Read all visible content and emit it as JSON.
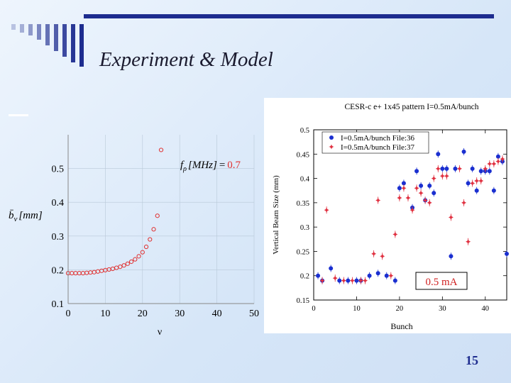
{
  "slide": {
    "title": "Experiment & Model",
    "page_number": "15",
    "accent_color": "#1d2c8f",
    "background_color": "#dbe8f7"
  },
  "chart_data": [
    {
      "type": "scatter",
      "xlabel": "ν",
      "ylabel_base": "b̄",
      "ylabel_sub": "ν",
      "ylabel_unit": "[mm]",
      "xlim": [
        0,
        50
      ],
      "ylim": [
        0.1,
        0.6
      ],
      "x_ticks": [
        "0",
        "10",
        "20",
        "30",
        "40",
        "50"
      ],
      "y_ticks": [
        "0.1",
        "0.2",
        "0.3",
        "0.4",
        "0.5"
      ],
      "annotation": {
        "prefix": "f",
        "sub": "ρ",
        "unit": "[MHz]",
        "equals": "=",
        "value": "0.7"
      },
      "marker_color": "#e03030",
      "x": [
        0,
        1,
        2,
        3,
        4,
        5,
        6,
        7,
        8,
        9,
        10,
        11,
        12,
        13,
        14,
        15,
        16,
        17,
        18,
        19,
        20,
        21,
        22,
        23,
        24,
        25
      ],
      "y": [
        0.19,
        0.19,
        0.19,
        0.19,
        0.19,
        0.191,
        0.192,
        0.193,
        0.195,
        0.197,
        0.199,
        0.201,
        0.203,
        0.206,
        0.209,
        0.213,
        0.218,
        0.224,
        0.231,
        0.24,
        0.252,
        0.268,
        0.29,
        0.32,
        0.36,
        0.555
      ]
    },
    {
      "type": "scatter",
      "title": "CESR-c e+ 1x45 pattern I=0.5mA/bunch",
      "xlabel": "Bunch",
      "ylabel": "Vertical Beam Size (mm)",
      "xlim": [
        0,
        45
      ],
      "ylim": [
        0.15,
        0.5
      ],
      "x_ticks": [
        "0",
        "10",
        "20",
        "30",
        "40"
      ],
      "y_ticks": [
        "0.15",
        "0.2",
        "0.25",
        "0.3",
        "0.35",
        "0.4",
        "0.45",
        "0.5"
      ],
      "annotation_box": "0.5 mA",
      "legend_position": "top-left",
      "series": [
        {
          "name": "I=0.5mA/bunch File:36",
          "color": "#1a2fd0",
          "marker": "circle",
          "x": [
            1,
            2,
            4,
            6,
            8,
            10,
            11,
            13,
            15,
            17,
            19,
            20,
            21,
            23,
            24,
            25,
            26,
            27,
            28,
            29,
            30,
            31,
            32,
            33,
            35,
            36,
            37,
            38,
            39,
            40,
            41,
            42,
            43,
            44,
            45
          ],
          "y": [
            0.2,
            0.19,
            0.215,
            0.19,
            0.19,
            0.19,
            0.19,
            0.2,
            0.205,
            0.2,
            0.19,
            0.38,
            0.39,
            0.34,
            0.415,
            0.385,
            0.355,
            0.385,
            0.37,
            0.45,
            0.42,
            0.42,
            0.24,
            0.42,
            0.455,
            0.39,
            0.42,
            0.375,
            0.415,
            0.415,
            0.415,
            0.375,
            0.445,
            0.435,
            0.245
          ]
        },
        {
          "name": "I=0.5mA/bunch File:37",
          "color": "#e03040",
          "marker": "star",
          "x": [
            2,
            3,
            5,
            7,
            9,
            11,
            12,
            14,
            15,
            16,
            18,
            19,
            20,
            21,
            22,
            23,
            24,
            25,
            26,
            27,
            28,
            29,
            30,
            31,
            32,
            34,
            35,
            36,
            37,
            38,
            39,
            40,
            41,
            42,
            43,
            44
          ],
          "y": [
            0.19,
            0.335,
            0.195,
            0.19,
            0.19,
            0.19,
            0.19,
            0.245,
            0.355,
            0.24,
            0.2,
            0.285,
            0.36,
            0.38,
            0.36,
            0.335,
            0.38,
            0.37,
            0.355,
            0.35,
            0.4,
            0.42,
            0.405,
            0.405,
            0.32,
            0.42,
            0.35,
            0.27,
            0.39,
            0.395,
            0.395,
            0.42,
            0.43,
            0.43,
            0.435,
            0.44
          ]
        }
      ]
    }
  ]
}
